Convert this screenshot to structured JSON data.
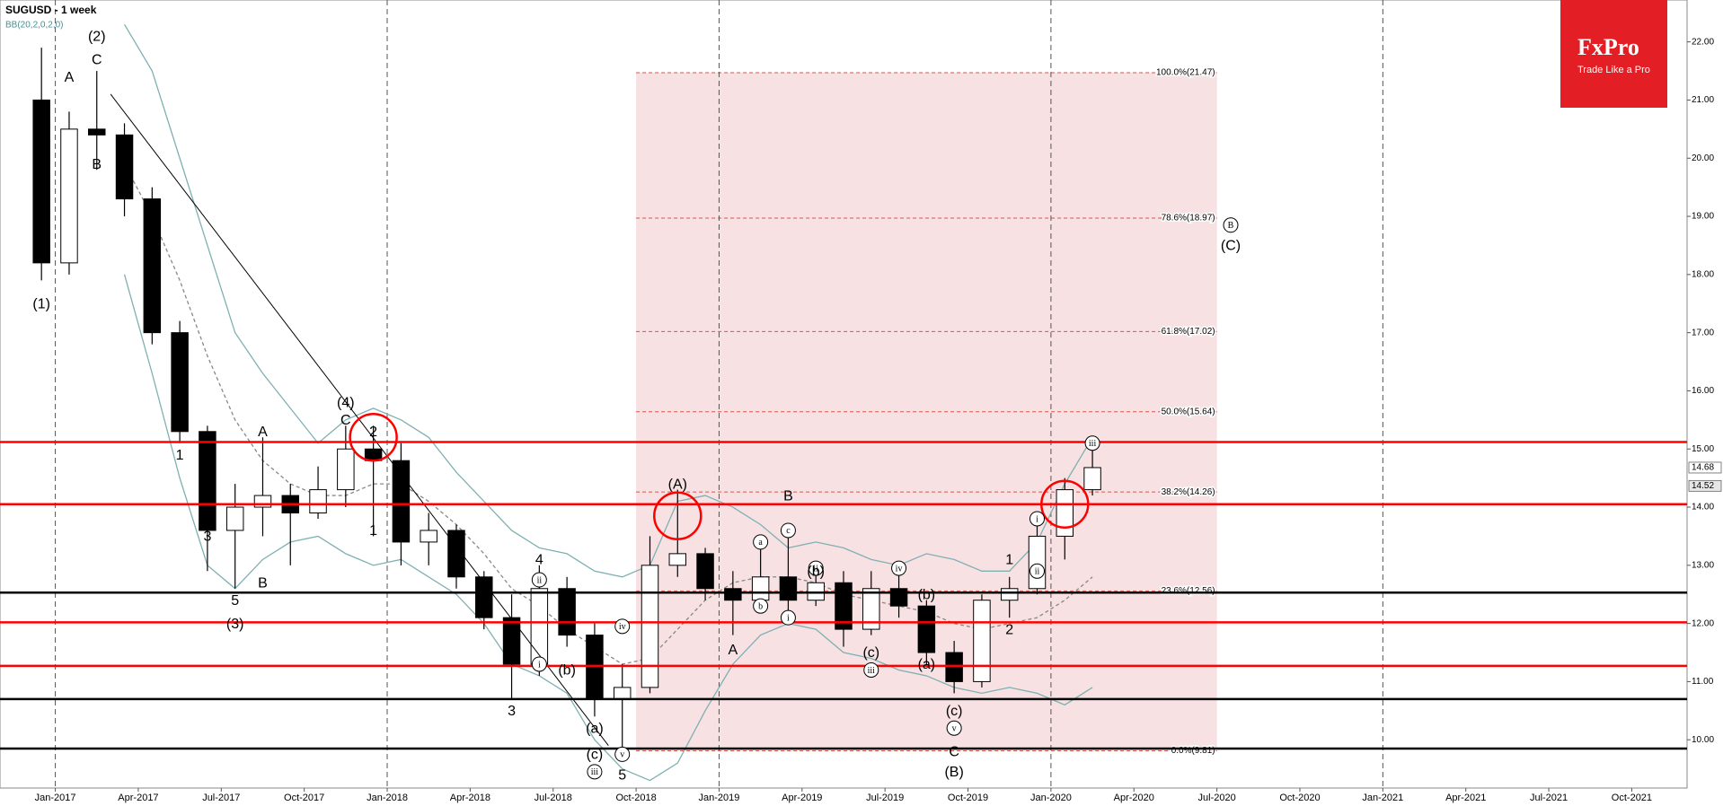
{
  "chart_data": {
    "type": "candlestick",
    "title": "SUGUSD - 1 week",
    "indicator": "BB(20,2,0,2,0)",
    "logo": {
      "brand": "FxPro",
      "tagline": "Trade Like a Pro"
    },
    "x": [
      "2016-12",
      "2017-01",
      "2017-02",
      "2017-03",
      "2017-04",
      "2017-05",
      "2017-06",
      "2017-07",
      "2017-08",
      "2017-09",
      "2017-10",
      "2017-11",
      "2017-12",
      "2018-01",
      "2018-02",
      "2018-03",
      "2018-04",
      "2018-05",
      "2018-06",
      "2018-07",
      "2018-08",
      "2018-09",
      "2018-10",
      "2018-11",
      "2018-12",
      "2019-01",
      "2019-02",
      "2019-03",
      "2019-04",
      "2019-05",
      "2019-06",
      "2019-07",
      "2019-08",
      "2019-09",
      "2019-10",
      "2019-11",
      "2019-12",
      "2020-01",
      "2020-02"
    ],
    "open": [
      21.0,
      18.2,
      20.5,
      20.4,
      19.3,
      17.0,
      15.3,
      13.6,
      14.0,
      14.2,
      13.9,
      14.3,
      15.0,
      14.8,
      13.4,
      13.6,
      12.8,
      12.1,
      11.3,
      12.6,
      11.8,
      10.7,
      10.9,
      13.0,
      13.2,
      12.6,
      12.4,
      12.8,
      12.4,
      12.7,
      11.9,
      12.6,
      12.3,
      11.5,
      11.0,
      12.4,
      12.6,
      13.5,
      14.3
    ],
    "high": [
      21.9,
      20.8,
      21.5,
      20.6,
      19.5,
      17.2,
      15.4,
      14.4,
      15.2,
      14.4,
      14.7,
      15.4,
      15.4,
      15.1,
      13.9,
      13.7,
      12.9,
      12.5,
      13.0,
      12.8,
      12.0,
      11.3,
      13.5,
      14.3,
      13.3,
      12.9,
      13.5,
      13.6,
      12.9,
      12.9,
      12.9,
      12.9,
      12.4,
      11.7,
      12.5,
      12.8,
      13.7,
      14.5,
      15.2
    ],
    "low": [
      17.9,
      18.0,
      19.8,
      19.0,
      16.8,
      15.1,
      12.9,
      12.6,
      13.5,
      13.0,
      13.8,
      14.0,
      13.5,
      13.0,
      13.0,
      12.6,
      11.9,
      10.7,
      11.1,
      11.6,
      10.4,
      9.85,
      10.8,
      12.8,
      12.4,
      11.8,
      12.2,
      12.1,
      12.3,
      11.6,
      11.8,
      12.1,
      11.3,
      10.8,
      10.9,
      12.1,
      12.5,
      13.1,
      14.2
    ],
    "close": [
      18.2,
      20.5,
      20.4,
      19.3,
      17.0,
      15.3,
      13.6,
      14.0,
      14.2,
      13.9,
      14.3,
      15.0,
      14.8,
      13.4,
      13.6,
      12.8,
      12.1,
      11.3,
      12.6,
      11.8,
      10.7,
      10.9,
      13.0,
      13.2,
      12.6,
      12.4,
      12.8,
      12.4,
      12.7,
      11.9,
      12.6,
      12.3,
      11.5,
      11.0,
      12.4,
      12.6,
      13.5,
      14.3,
      14.68
    ],
    "up_color": "#ffffff",
    "down_color": "#000000",
    "bands": [
      {
        "color": "#7fb0b3",
        "dash": false,
        "values": [
          null,
          null,
          null,
          22.3,
          21.5,
          20.0,
          18.5,
          17.0,
          16.3,
          15.7,
          15.1,
          15.5,
          15.7,
          15.5,
          15.2,
          14.6,
          14.1,
          13.6,
          13.3,
          13.2,
          12.9,
          12.8,
          13.0,
          14.1,
          14.2,
          14.0,
          13.7,
          13.3,
          13.4,
          13.3,
          13.1,
          13.0,
          13.2,
          13.1,
          12.9,
          12.9,
          13.4,
          14.4,
          15.2
        ]
      },
      {
        "color": "#888888",
        "dash": true,
        "values": [
          null,
          null,
          null,
          19.9,
          19.0,
          17.9,
          16.6,
          15.5,
          14.8,
          14.4,
          14.2,
          14.2,
          14.4,
          14.4,
          14.1,
          13.7,
          13.2,
          12.6,
          12.3,
          11.9,
          11.6,
          11.3,
          11.4,
          11.9,
          12.4,
          12.7,
          12.8,
          12.8,
          12.7,
          12.5,
          12.4,
          12.3,
          12.2,
          12.0,
          11.9,
          12.0,
          12.1,
          12.4,
          12.8
        ]
      },
      {
        "color": "#7fb0b3",
        "dash": false,
        "values": [
          null,
          null,
          null,
          18.0,
          16.3,
          14.5,
          13.0,
          12.6,
          13.1,
          13.4,
          13.5,
          13.2,
          13.0,
          13.1,
          12.8,
          12.5,
          12.0,
          11.3,
          11.1,
          10.8,
          10.0,
          9.5,
          9.3,
          9.6,
          10.5,
          11.3,
          11.8,
          12.0,
          11.9,
          11.5,
          11.4,
          11.2,
          11.1,
          10.9,
          10.8,
          10.9,
          10.8,
          10.6,
          10.9
        ]
      }
    ],
    "xlim": [
      "2016-11",
      "2021-12"
    ],
    "xticks": [
      {
        "value": "2017-01",
        "label": "Jan-2017"
      },
      {
        "value": "2017-04",
        "label": "Apr-2017"
      },
      {
        "value": "2017-07",
        "label": "Jul-2017"
      },
      {
        "value": "2017-10",
        "label": "Oct-2017"
      },
      {
        "value": "2018-01",
        "label": "Jan-2018"
      },
      {
        "value": "2018-04",
        "label": "Apr-2018"
      },
      {
        "value": "2018-07",
        "label": "Jul-2018"
      },
      {
        "value": "2018-10",
        "label": "Oct-2018"
      },
      {
        "value": "2019-01",
        "label": "Jan-2019"
      },
      {
        "value": "2019-04",
        "label": "Apr-2019"
      },
      {
        "value": "2019-07",
        "label": "Jul-2019"
      },
      {
        "value": "2019-10",
        "label": "Oct-2019"
      },
      {
        "value": "2020-01",
        "label": "Jan-2020"
      },
      {
        "value": "2020-04",
        "label": "Apr-2020"
      },
      {
        "value": "2020-07",
        "label": "Jul-2020"
      },
      {
        "value": "2020-10",
        "label": "Oct-2020"
      },
      {
        "value": "2021-01",
        "label": "Jan-2021"
      },
      {
        "value": "2021-04",
        "label": "Apr-2021"
      },
      {
        "value": "2021-07",
        "label": "Jul-2021"
      },
      {
        "value": "2021-10",
        "label": "Oct-2021"
      }
    ],
    "year_lines": true,
    "ylim": [
      9.17,
      22.72
    ],
    "yticks": [
      {
        "value": 10,
        "label": "10.00"
      },
      {
        "value": 11,
        "label": "11.00"
      },
      {
        "value": 12,
        "label": "12.00"
      },
      {
        "value": 13,
        "label": "13.00"
      },
      {
        "value": 14,
        "label": "14.00"
      },
      {
        "value": 15,
        "label": "15.00"
      },
      {
        "value": 16,
        "label": "16.00"
      },
      {
        "value": 17,
        "label": "17.00"
      },
      {
        "value": 18,
        "label": "18.00"
      },
      {
        "value": 19,
        "label": "19.00"
      },
      {
        "value": 20,
        "label": "20.00"
      },
      {
        "value": 21,
        "label": "21.00"
      },
      {
        "value": 22,
        "label": "22.00"
      }
    ],
    "price_tags": [
      14.68,
      14.52
    ],
    "fib": {
      "x": [
        "2018-10",
        "2020-07"
      ],
      "shade": "#f7e1e3",
      "color": "#d9534f",
      "levels": [
        {
          "value": 21.47,
          "label": "100.0%(21.47)"
        },
        {
          "value": 18.97,
          "label": "78.6%(18.97)"
        },
        {
          "value": 17.02,
          "label": "61.8%(17.02)"
        },
        {
          "value": 15.64,
          "label": "50.0%(15.64)"
        },
        {
          "value": 14.26,
          "label": "38.2%(14.26)"
        },
        {
          "value": 12.56,
          "label": "23.6%(12.56)"
        },
        {
          "value": 9.81,
          "label": "0.0%(9.81)"
        }
      ]
    },
    "levels": [
      {
        "value": 15.12,
        "color": "#ff0000"
      },
      {
        "value": 14.05,
        "color": "#ff0000"
      },
      {
        "value": 12.02,
        "color": "#ff0000"
      },
      {
        "value": 11.27,
        "color": "#ff0000"
      },
      {
        "value": 12.53,
        "color": "#000000"
      },
      {
        "value": 10.7,
        "color": "#000000"
      },
      {
        "value": 9.85,
        "color": "#000000"
      }
    ],
    "trendline": {
      "x": [
        "2017-03",
        "2018-09"
      ],
      "y": [
        21.1,
        9.9
      ]
    },
    "highlights": [
      {
        "x": "2017-12",
        "y": 15.2
      },
      {
        "x": "2018-11",
        "y": 13.85
      },
      {
        "x": "2020-01",
        "y": 14.05
      }
    ],
    "annotations": [
      {
        "text": "(2)",
        "x": "2017-02",
        "y": 22.1,
        "circled": false
      },
      {
        "text": "A",
        "x": "2017-01",
        "y": 21.4,
        "circled": false
      },
      {
        "text": "C",
        "x": "2017-02",
        "y": 21.7,
        "circled": false
      },
      {
        "text": "B",
        "x": "2017-02",
        "y": 19.9,
        "circled": false
      },
      {
        "text": "(1)",
        "x": "2016-12",
        "y": 17.5,
        "circled": false
      },
      {
        "text": "2",
        "x": "2017-05",
        "y": 16.8,
        "circled": false
      },
      {
        "text": "1",
        "x": "2017-05",
        "y": 14.9,
        "circled": false
      },
      {
        "text": "4",
        "x": "2017-06",
        "y": 14.4,
        "circled": false
      },
      {
        "text": "3",
        "x": "2017-06",
        "y": 13.5,
        "circled": false
      },
      {
        "text": "5",
        "x": "2017-07",
        "y": 12.4,
        "circled": false
      },
      {
        "text": "(3)",
        "x": "2017-07",
        "y": 12.0,
        "circled": false
      },
      {
        "text": "A",
        "x": "2017-08",
        "y": 15.3,
        "circled": false
      },
      {
        "text": "B",
        "x": "2017-08",
        "y": 12.7,
        "circled": false
      },
      {
        "text": "(4)",
        "x": "2017-11",
        "y": 15.8,
        "circled": false
      },
      {
        "text": "C",
        "x": "2017-11",
        "y": 15.5,
        "circled": false
      },
      {
        "text": "2",
        "x": "2017-12",
        "y": 15.3,
        "circled": false
      },
      {
        "text": "1",
        "x": "2017-12",
        "y": 13.6,
        "circled": false
      },
      {
        "text": "4",
        "x": "2018-06",
        "y": 13.1,
        "circled": false
      },
      {
        "text": "ii",
        "x": "2018-06",
        "y": 12.75,
        "circled": true
      },
      {
        "text": "i",
        "x": "2018-06",
        "y": 11.3,
        "circled": true
      },
      {
        "text": "3",
        "x": "2018-05",
        "y": 10.5,
        "circled": false
      },
      {
        "text": "(b)",
        "x": "2018-07",
        "y": 11.2,
        "circled": false
      },
      {
        "text": "(a)",
        "x": "2018-08",
        "y": 10.2,
        "circled": false
      },
      {
        "text": "(c)",
        "x": "2018-08",
        "y": 9.75,
        "circled": false
      },
      {
        "text": "iii",
        "x": "2018-08",
        "y": 9.45,
        "circled": true
      },
      {
        "text": "iv",
        "x": "2018-09",
        "y": 11.95,
        "circled": true
      },
      {
        "text": "v",
        "x": "2018-09",
        "y": 9.75,
        "circled": true
      },
      {
        "text": "5",
        "x": "2018-09",
        "y": 9.4,
        "circled": false
      },
      {
        "text": "(A)",
        "x": "2018-11",
        "y": 14.4,
        "circled": false
      },
      {
        "text": "a",
        "x": "2019-02",
        "y": 13.4,
        "circled": true
      },
      {
        "text": "b",
        "x": "2019-02",
        "y": 12.3,
        "circled": true
      },
      {
        "text": "c",
        "x": "2019-03",
        "y": 13.6,
        "circled": true
      },
      {
        "text": "B",
        "x": "2019-03",
        "y": 14.2,
        "circled": false
      },
      {
        "text": "A",
        "x": "2019-01",
        "y": 11.55,
        "circled": false
      },
      {
        "text": "ii",
        "x": "2019-04",
        "y": 12.95,
        "circled": true
      },
      {
        "text": "i",
        "x": "2019-03",
        "y": 12.1,
        "circled": true
      },
      {
        "text": "(b)",
        "x": "2019-04",
        "y": 12.9,
        "circled": false
      },
      {
        "text": "(a)",
        "x": "2019-05",
        "y": 12.2,
        "circled": false
      },
      {
        "text": "(c)",
        "x": "2019-06",
        "y": 11.5,
        "circled": false
      },
      {
        "text": "iii",
        "x": "2019-06",
        "y": 11.2,
        "circled": true
      },
      {
        "text": "iv",
        "x": "2019-07",
        "y": 12.95,
        "circled": true
      },
      {
        "text": "(b)",
        "x": "2019-08",
        "y": 12.5,
        "circled": false
      },
      {
        "text": "(a)",
        "x": "2019-08",
        "y": 11.3,
        "circled": false
      },
      {
        "text": "(c)",
        "x": "2019-09",
        "y": 10.5,
        "circled": false
      },
      {
        "text": "v",
        "x": "2019-09",
        "y": 10.2,
        "circled": true
      },
      {
        "text": "C",
        "x": "2019-09",
        "y": 9.8,
        "circled": false
      },
      {
        "text": "(B)",
        "x": "2019-09",
        "y": 9.45,
        "circled": false
      },
      {
        "text": "1",
        "x": "2019-11",
        "y": 13.1,
        "circled": false
      },
      {
        "text": "2",
        "x": "2019-11",
        "y": 11.9,
        "circled": false
      },
      {
        "text": "i",
        "x": "2019-12",
        "y": 13.8,
        "circled": true
      },
      {
        "text": "ii",
        "x": "2019-12",
        "y": 12.9,
        "circled": true
      },
      {
        "text": "iii",
        "x": "2020-02",
        "y": 15.1,
        "circled": true
      },
      {
        "text": "B",
        "x": "2020-07",
        "y": 18.85,
        "circled": true
      },
      {
        "text": "(C)",
        "x": "2020-07",
        "y": 18.5,
        "circled": false
      }
    ]
  }
}
